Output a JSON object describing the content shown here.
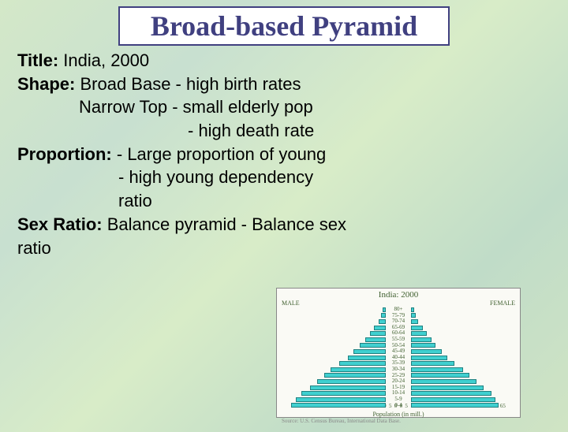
{
  "title": "Broad-based Pyramid",
  "lines": {
    "title_label": "Title:",
    "title_value": " India, 2000",
    "shape_label": "Shape:",
    "shape_l1": " Broad Base  -  high birth rates",
    "shape_l2": "Narrow Top  -  small elderly pop",
    "shape_l3": "-  high death rate",
    "prop_label": "Proportion:",
    "prop_l1": " - Large proportion of young",
    "prop_l2": "- high young dependency",
    "prop_l3": "ratio",
    "sex_label": "Sex Ratio:",
    "sex_l1": " Balance pyramid - Balance sex",
    "sex_l2": "ratio"
  },
  "chart": {
    "title": "India: 2000",
    "male_label": "MALE",
    "female_label": "FEMALE",
    "xlabel": "Population (in mill.)",
    "source": "Source: U.S. Census Bureau, International Data Base.",
    "age_groups": [
      "80+",
      "75-79",
      "70-74",
      "65-69",
      "60-64",
      "55-59",
      "50-54",
      "45-49",
      "40-44",
      "35-39",
      "30-34",
      "25-29",
      "20-24",
      "15-19",
      "10-14",
      "5-9",
      "0-4"
    ],
    "male_values": [
      2,
      3,
      5,
      8,
      11,
      14,
      18,
      22,
      26,
      32,
      38,
      42,
      47,
      52,
      58,
      62,
      65
    ],
    "female_values": [
      2,
      3,
      5,
      8,
      11,
      14,
      17,
      21,
      25,
      30,
      36,
      40,
      45,
      50,
      55,
      58,
      60
    ],
    "x_ticks": [
      "65",
      "60",
      "55",
      "50",
      "45",
      "40",
      "35",
      "30",
      "25",
      "20",
      "15",
      "10",
      "5",
      "0",
      "0",
      "5",
      "10",
      "15",
      "20",
      "25",
      "30",
      "35",
      "40",
      "45",
      "50",
      "55",
      "60",
      "65"
    ],
    "x_max": 65,
    "bar_color": "#40d0d0",
    "bar_border": "#208080",
    "background": "#fafaf5"
  }
}
